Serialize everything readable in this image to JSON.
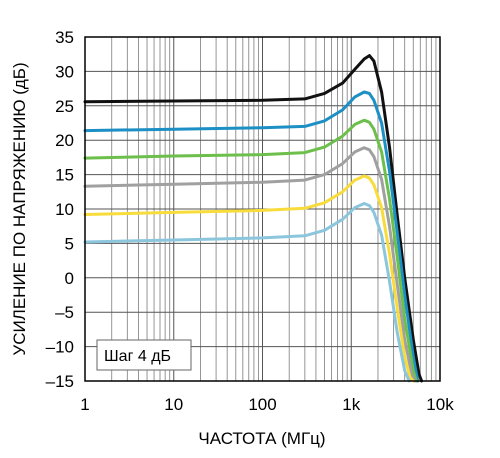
{
  "chart_data": {
    "type": "line",
    "xlabel": "ЧАСТОТА (МГц)",
    "ylabel": "УСИЛЕНИЕ ПО НАПРЯЖЕНИЮ (дБ)",
    "x_scale": "log",
    "xlim": [
      1,
      10000
    ],
    "ylim": [
      -15,
      35
    ],
    "grid": true,
    "x_ticks": [
      {
        "value": 1,
        "label": "1"
      },
      {
        "value": 10,
        "label": "10"
      },
      {
        "value": 100,
        "label": "100"
      },
      {
        "value": 1000,
        "label": "1k"
      },
      {
        "value": 10000,
        "label": "10k"
      }
    ],
    "y_ticks": [
      {
        "value": 35,
        "label": "35"
      },
      {
        "value": 30,
        "label": "30"
      },
      {
        "value": 25,
        "label": "25"
      },
      {
        "value": 20,
        "label": "20"
      },
      {
        "value": 15,
        "label": "15"
      },
      {
        "value": 10,
        "label": "10"
      },
      {
        "value": 5,
        "label": "5"
      },
      {
        "value": 0,
        "label": "0"
      },
      {
        "value": -5,
        "label": "–5"
      },
      {
        "value": -10,
        "label": "–10"
      },
      {
        "value": -15,
        "label": "–15"
      }
    ],
    "annotation": "Шаг 4 дБ",
    "series": [
      {
        "color": "#111111",
        "x": [
          1,
          10,
          100,
          300,
          500,
          800,
          1100,
          1400,
          1600,
          1800,
          2200,
          2700,
          3300,
          4000,
          5000,
          5800,
          6200
        ],
        "y": [
          25.6,
          25.7,
          25.8,
          26.0,
          26.8,
          28.3,
          30.3,
          31.8,
          32.3,
          31.5,
          27.0,
          19.0,
          9.0,
          0.0,
          -9.0,
          -14.0,
          -15.0
        ]
      },
      {
        "color": "#1c8fc4",
        "x": [
          1,
          10,
          100,
          300,
          500,
          800,
          1100,
          1400,
          1600,
          1800,
          2200,
          2700,
          3300,
          4000,
          5000,
          5600
        ],
        "y": [
          21.4,
          21.6,
          21.8,
          22.0,
          22.8,
          24.4,
          26.3,
          27.0,
          26.8,
          25.8,
          22.5,
          15.5,
          6.5,
          -2.5,
          -11.5,
          -15.0
        ]
      },
      {
        "color": "#6dbf4b",
        "x": [
          1,
          10,
          100,
          300,
          500,
          800,
          1100,
          1400,
          1600,
          1800,
          2200,
          2700,
          3300,
          4000,
          5000,
          5400
        ],
        "y": [
          17.4,
          17.7,
          17.9,
          18.2,
          19.0,
          20.6,
          22.3,
          22.9,
          22.6,
          21.6,
          18.3,
          11.5,
          3.0,
          -6.0,
          -13.5,
          -15.0
        ]
      },
      {
        "color": "#a0a0a0",
        "x": [
          1,
          10,
          100,
          300,
          500,
          800,
          1100,
          1400,
          1600,
          1800,
          2200,
          2700,
          3300,
          4000,
          4800,
          5200
        ],
        "y": [
          13.3,
          13.6,
          13.9,
          14.2,
          15.0,
          16.6,
          18.3,
          18.9,
          18.6,
          17.6,
          14.3,
          7.5,
          -1.0,
          -9.0,
          -14.0,
          -15.0
        ]
      },
      {
        "color": "#f7dc3c",
        "x": [
          1,
          10,
          100,
          300,
          500,
          800,
          1100,
          1400,
          1600,
          1800,
          2200,
          2700,
          3300,
          4000,
          4600,
          5000
        ],
        "y": [
          9.2,
          9.5,
          9.8,
          10.1,
          10.9,
          12.5,
          14.2,
          14.8,
          14.5,
          13.5,
          10.2,
          3.5,
          -4.5,
          -11.5,
          -14.5,
          -15.0
        ]
      },
      {
        "color": "#8cc6dd",
        "x": [
          1,
          10,
          100,
          300,
          500,
          800,
          1100,
          1400,
          1600,
          1800,
          2200,
          2700,
          3300,
          4000,
          4500
        ],
        "y": [
          5.2,
          5.5,
          5.8,
          6.1,
          6.9,
          8.5,
          10.2,
          10.8,
          10.5,
          9.5,
          6.2,
          -0.5,
          -8.0,
          -13.5,
          -15.0
        ]
      }
    ]
  }
}
